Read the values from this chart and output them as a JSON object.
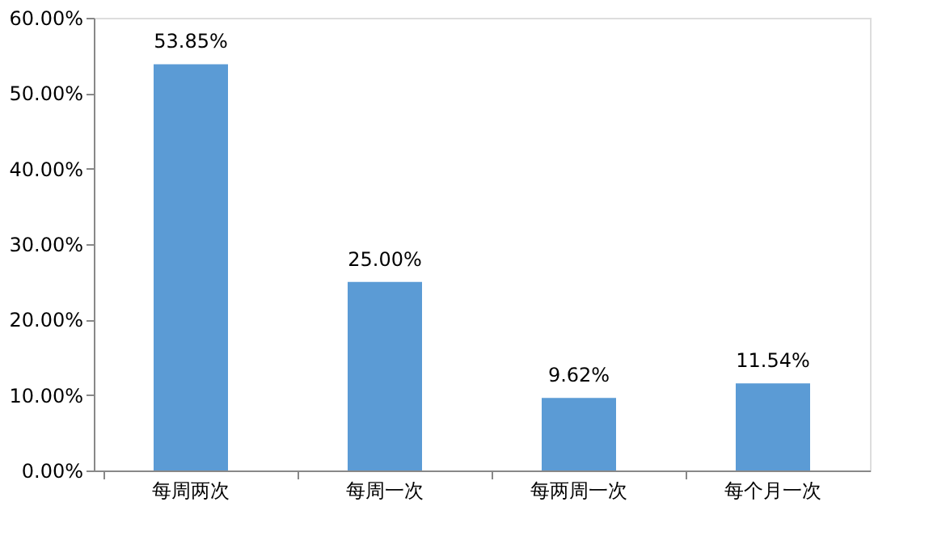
{
  "chart_data": {
    "type": "bar",
    "categories": [
      "每周两次",
      "每周一次",
      "每两周一次",
      "每个月一次"
    ],
    "values": [
      53.85,
      25.0,
      9.62,
      11.54
    ],
    "value_labels": [
      "53.85%",
      "25.00%",
      "9.62%",
      "11.54%"
    ],
    "color": "#5b9bd5",
    "ylim": [
      0,
      60
    ],
    "yticks": [
      {
        "value": 0,
        "label": "0.00%"
      },
      {
        "value": 10,
        "label": "10.00%"
      },
      {
        "value": 20,
        "label": "20.00%"
      },
      {
        "value": 30,
        "label": "30.00%"
      },
      {
        "value": 40,
        "label": "40.00%"
      },
      {
        "value": 50,
        "label": "50.00%"
      },
      {
        "value": 60,
        "label": "60.00%"
      }
    ],
    "grid": false
  }
}
